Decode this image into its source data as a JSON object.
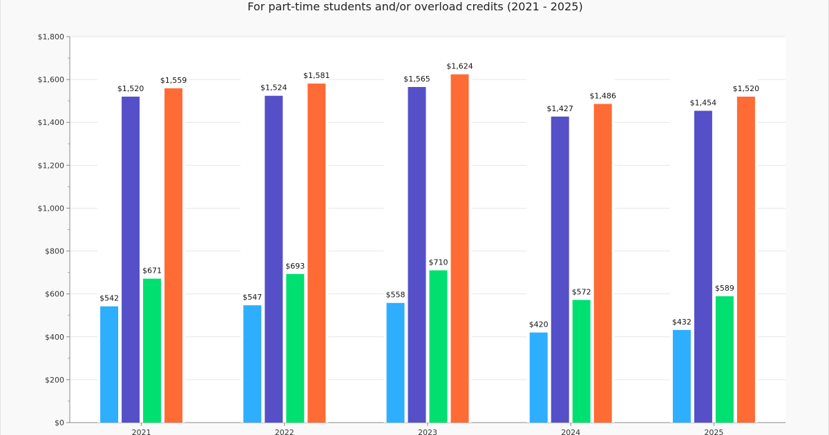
{
  "chart_data": {
    "type": "bar",
    "title": "For part-time students and/or overload credits (2021 - 2025)",
    "xlabel": "",
    "ylabel": "",
    "categories": [
      "2021",
      "2022",
      "2023",
      "2024",
      "2025"
    ],
    "series": [
      {
        "values": [
          542,
          547,
          558,
          420,
          432
        ],
        "color": "#2eaeff",
        "labels": [
          "$542",
          "$547",
          "$558",
          "$420",
          "$432"
        ]
      },
      {
        "values": [
          1520,
          1524,
          1565,
          1427,
          1454
        ],
        "color": "#5550c8",
        "labels": [
          "$1,520",
          "$1,524",
          "$1,565",
          "$1,427",
          "$1,454"
        ]
      },
      {
        "values": [
          671,
          693,
          710,
          572,
          589
        ],
        "color": "#00e070",
        "labels": [
          "$671",
          "$693",
          "$710",
          "$572",
          "$589"
        ]
      },
      {
        "values": [
          1559,
          1581,
          1624,
          1486,
          1520
        ],
        "color": "#ff6b35",
        "labels": [
          "$1,559",
          "$1,581",
          "$1,624",
          "$1,486",
          "$1,520"
        ]
      }
    ],
    "ylim": [
      0,
      1800
    ],
    "yticks": [
      0,
      200,
      400,
      600,
      800,
      1000,
      1200,
      1400,
      1600,
      1800
    ],
    "ytick_labels": [
      "$0",
      "$200",
      "$400",
      "$600",
      "$800",
      "$1,000",
      "$1,200",
      "$1,400",
      "$1,600",
      "$1,800"
    ],
    "grid": true,
    "legend": "none"
  }
}
